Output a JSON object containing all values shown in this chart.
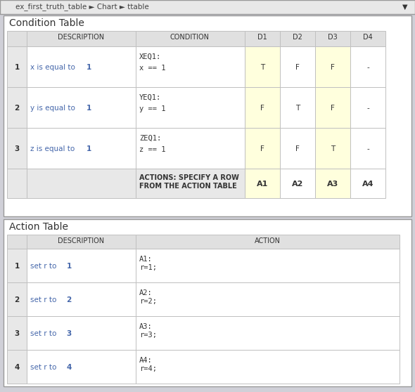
{
  "title_bar_text": "ex_first_truth_table ► Chart ► ttable",
  "title_bar_bg": "#e8e8e8",
  "title_bar_text_color": "#444444",
  "cond_table_title": "Condition Table",
  "action_table_title": "Action Table",
  "cond_header": [
    "",
    "DESCRIPTION",
    "CONDITION",
    "D1",
    "D2",
    "D3",
    "D4"
  ],
  "cond_rows": [
    {
      "num": "1",
      "desc": "x is equal to 1",
      "desc_bold": "1",
      "cond_label": "XEQ1:",
      "cond_code": "x == 1",
      "d1": "T",
      "d2": "F",
      "d3": "F",
      "d4": "-"
    },
    {
      "num": "2",
      "desc": "y is equal to 1",
      "desc_bold": "1",
      "cond_label": "YEQ1:",
      "cond_code": "y == 1",
      "d1": "F",
      "d2": "T",
      "d3": "F",
      "d4": "-"
    },
    {
      "num": "3",
      "desc": "z is equal to 1",
      "desc_bold": "1",
      "cond_label": "ZEQ1:",
      "cond_code": "z == 1",
      "d1": "F",
      "d2": "F",
      "d3": "T",
      "d4": "-"
    }
  ],
  "action_row": {
    "desc_line1": "ACTIONS: SPECIFY A ROW",
    "desc_line2": "FROM THE ACTION TABLE",
    "d1": "A1",
    "d2": "A2",
    "d3": "A3",
    "d4": "A4"
  },
  "action_header": [
    "",
    "DESCRIPTION",
    "ACTION"
  ],
  "action_rows": [
    {
      "num": "1",
      "desc": "set r to 1",
      "desc_bold": "1",
      "action_label": "A1:",
      "action_code": "r=1;"
    },
    {
      "num": "2",
      "desc": "set r to 2",
      "desc_bold": "2",
      "action_label": "A2:",
      "action_code": "r=2;"
    },
    {
      "num": "3",
      "desc": "set r to 3",
      "desc_bold": "3",
      "action_label": "A3:",
      "action_code": "r=3;"
    },
    {
      "num": "4",
      "desc": "set r to 4",
      "desc_bold": "4",
      "action_label": "A4:",
      "action_code": "r=4;"
    }
  ],
  "bg_outer": "#d0d0d8",
  "bg_color": "#f0f0f0",
  "panel_bg": "#ffffff",
  "header_bg": "#e0e0e0",
  "num_col_bg": "#e8e8e8",
  "yellow_bg": "#ffffdd",
  "white_bg": "#ffffff",
  "border_color": "#c0c0c0",
  "border_dark": "#999999",
  "text_color": "#333333",
  "blue_text": "#4466aa",
  "title_font_size": 10,
  "header_font_size": 7,
  "cell_font_size": 7.5,
  "label_font_size": 7.5
}
